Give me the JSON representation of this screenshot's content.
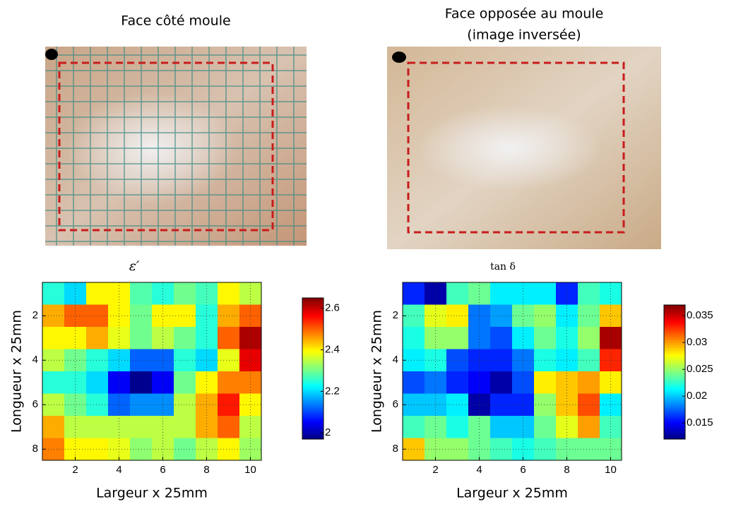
{
  "photos": [
    {
      "caption": [
        "Face côté moule"
      ]
    },
    {
      "caption": [
        "Face opposée au moule",
        "(image inversée)"
      ]
    }
  ],
  "chart_data": [
    {
      "type": "heatmap",
      "title": "ε′",
      "xlabel": "Largeur x 25mm",
      "ylabel": "Longueur x 25mm",
      "colormap": "jet",
      "grid": true,
      "xlim": [
        0.5,
        10.5
      ],
      "ylim": [
        0.5,
        8.5
      ],
      "yreverse": true,
      "xticks": [
        2,
        4,
        6,
        8,
        10
      ],
      "yticks": [
        2,
        4,
        6,
        8
      ],
      "clim": [
        1.97,
        2.65
      ],
      "cticks": [
        2,
        2.2,
        2.4,
        2.6
      ],
      "z": [
        [
          2.25,
          2.2,
          2.4,
          2.4,
          2.28,
          2.25,
          2.3,
          2.27,
          2.4,
          2.35
        ],
        [
          2.45,
          2.5,
          2.5,
          2.4,
          2.3,
          2.4,
          2.4,
          2.25,
          2.45,
          2.5
        ],
        [
          2.4,
          2.4,
          2.45,
          2.38,
          2.3,
          2.35,
          2.3,
          2.25,
          2.5,
          2.62
        ],
        [
          2.35,
          2.3,
          2.25,
          2.2,
          2.12,
          2.12,
          2.25,
          2.2,
          2.38,
          2.58
        ],
        [
          2.25,
          2.25,
          2.2,
          2.05,
          1.98,
          2.05,
          2.3,
          2.4,
          2.48,
          2.48
        ],
        [
          2.35,
          2.3,
          2.25,
          2.12,
          2.15,
          2.15,
          2.35,
          2.45,
          2.55,
          2.4
        ],
        [
          2.45,
          2.35,
          2.35,
          2.35,
          2.35,
          2.35,
          2.35,
          2.45,
          2.5,
          2.35
        ],
        [
          2.48,
          2.4,
          2.4,
          2.38,
          2.32,
          2.35,
          2.3,
          2.35,
          2.4,
          2.33
        ]
      ]
    },
    {
      "type": "heatmap",
      "title": "tan δ",
      "xlabel": "Largeur x 25mm",
      "ylabel": "Longueur x 25mm",
      "colormap": "jet",
      "grid": true,
      "xlim": [
        0.5,
        10.5
      ],
      "ylim": [
        0.5,
        8.5
      ],
      "yreverse": true,
      "xticks": [
        2,
        4,
        6,
        8,
        10
      ],
      "yticks": [
        2,
        4,
        6,
        8
      ],
      "clim": [
        0.012,
        0.037
      ],
      "cticks": [
        0.015,
        0.02,
        0.025,
        0.03,
        0.035
      ],
      "z": [
        [
          0.016,
          0.013,
          0.023,
          0.024,
          0.021,
          0.021,
          0.021,
          0.016,
          0.023,
          0.022
        ],
        [
          0.023,
          0.027,
          0.028,
          0.018,
          0.019,
          0.024,
          0.025,
          0.021,
          0.024,
          0.029
        ],
        [
          0.022,
          0.025,
          0.025,
          0.018,
          0.017,
          0.021,
          0.024,
          0.022,
          0.025,
          0.036
        ],
        [
          0.021,
          0.022,
          0.017,
          0.016,
          0.016,
          0.018,
          0.022,
          0.021,
          0.023,
          0.033
        ],
        [
          0.017,
          0.018,
          0.016,
          0.015,
          0.013,
          0.017,
          0.028,
          0.029,
          0.03,
          0.028
        ],
        [
          0.02,
          0.02,
          0.021,
          0.013,
          0.016,
          0.016,
          0.025,
          0.029,
          0.032,
          0.021
        ],
        [
          0.023,
          0.024,
          0.022,
          0.024,
          0.02,
          0.02,
          0.024,
          0.027,
          0.03,
          0.023
        ],
        [
          0.029,
          0.025,
          0.025,
          0.024,
          0.023,
          0.022,
          0.023,
          0.024,
          0.024,
          0.024
        ]
      ]
    }
  ]
}
